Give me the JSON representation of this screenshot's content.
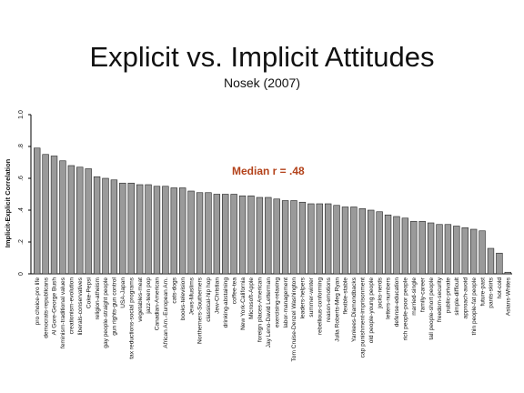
{
  "slide": {
    "title": "Explicit vs. Implicit Attitudes",
    "subtitle": "Nosek (2007)"
  },
  "colors": {
    "bar_fill": "#9a9a9a",
    "bar_stroke": "#222222",
    "annotation": "#b3421a"
  },
  "chart_data": {
    "type": "bar",
    "ylabel": "Implicit-Explicit Correlation",
    "xlabel": "",
    "ylim": [
      0,
      1.0
    ],
    "yticks": [
      "0",
      ".2",
      ".4",
      ".6",
      ".8",
      "1.0"
    ],
    "grid": false,
    "annotation": "Median r = .48",
    "categories": [
      "pro choice-pro life",
      "democrats-republicans",
      "Al Gore-George Bush",
      "feminism-traditional values",
      "creationism-evolution",
      "liberals-conservatives",
      "Coke-Pepsi",
      "religion-atheism",
      "gay people-straight people",
      "gun rights-gun control",
      "USA-Japan",
      "tax reductions-social programs",
      "vegetables-meat",
      "jazz-teen pop",
      "Canadian-American",
      "African Am.-European Am.",
      "cats-dogs",
      "books-television",
      "Jews-Muslims",
      "Northerners-Southerners",
      "classical-hip hop",
      "Jew-Christian",
      "drinking-abstaining",
      "coffee-tea",
      "New York-California",
      "Microsoft-Apple",
      "foreign places-American",
      "Jay Leno-David Letterman",
      "exercising-relaxing",
      "labor-management",
      "Tom Cruise-Denzel Washington",
      "leaders-helpers",
      "summer-winter",
      "rebellious-conforming",
      "reason-emotions",
      "Julia Roberts-Meg Ryan",
      "flexible-stable",
      "Yankees-Diamondbacks",
      "cap punishment-imprisonment",
      "old people-young people",
      "jocks-nerds",
      "letters-numbers",
      "defense-education",
      "rich people-poor people",
      "married-single",
      "family-career",
      "tall people-short people",
      "freedom-security",
      "public-private",
      "simple-difficult",
      "approach-avoid",
      "thin people-fat people",
      "future-past",
      "pants-skirts",
      "hot-cold",
      "Asians-Whites"
    ],
    "values": [
      0.79,
      0.75,
      0.74,
      0.71,
      0.68,
      0.67,
      0.66,
      0.61,
      0.6,
      0.59,
      0.57,
      0.57,
      0.56,
      0.56,
      0.55,
      0.55,
      0.54,
      0.54,
      0.52,
      0.51,
      0.51,
      0.5,
      0.5,
      0.5,
      0.49,
      0.49,
      0.48,
      0.48,
      0.47,
      0.46,
      0.46,
      0.45,
      0.44,
      0.44,
      0.44,
      0.43,
      0.42,
      0.42,
      0.41,
      0.4,
      0.39,
      0.37,
      0.36,
      0.35,
      0.33,
      0.33,
      0.32,
      0.31,
      0.31,
      0.3,
      0.29,
      0.28,
      0.27,
      0.16,
      0.13,
      0.01
    ]
  }
}
